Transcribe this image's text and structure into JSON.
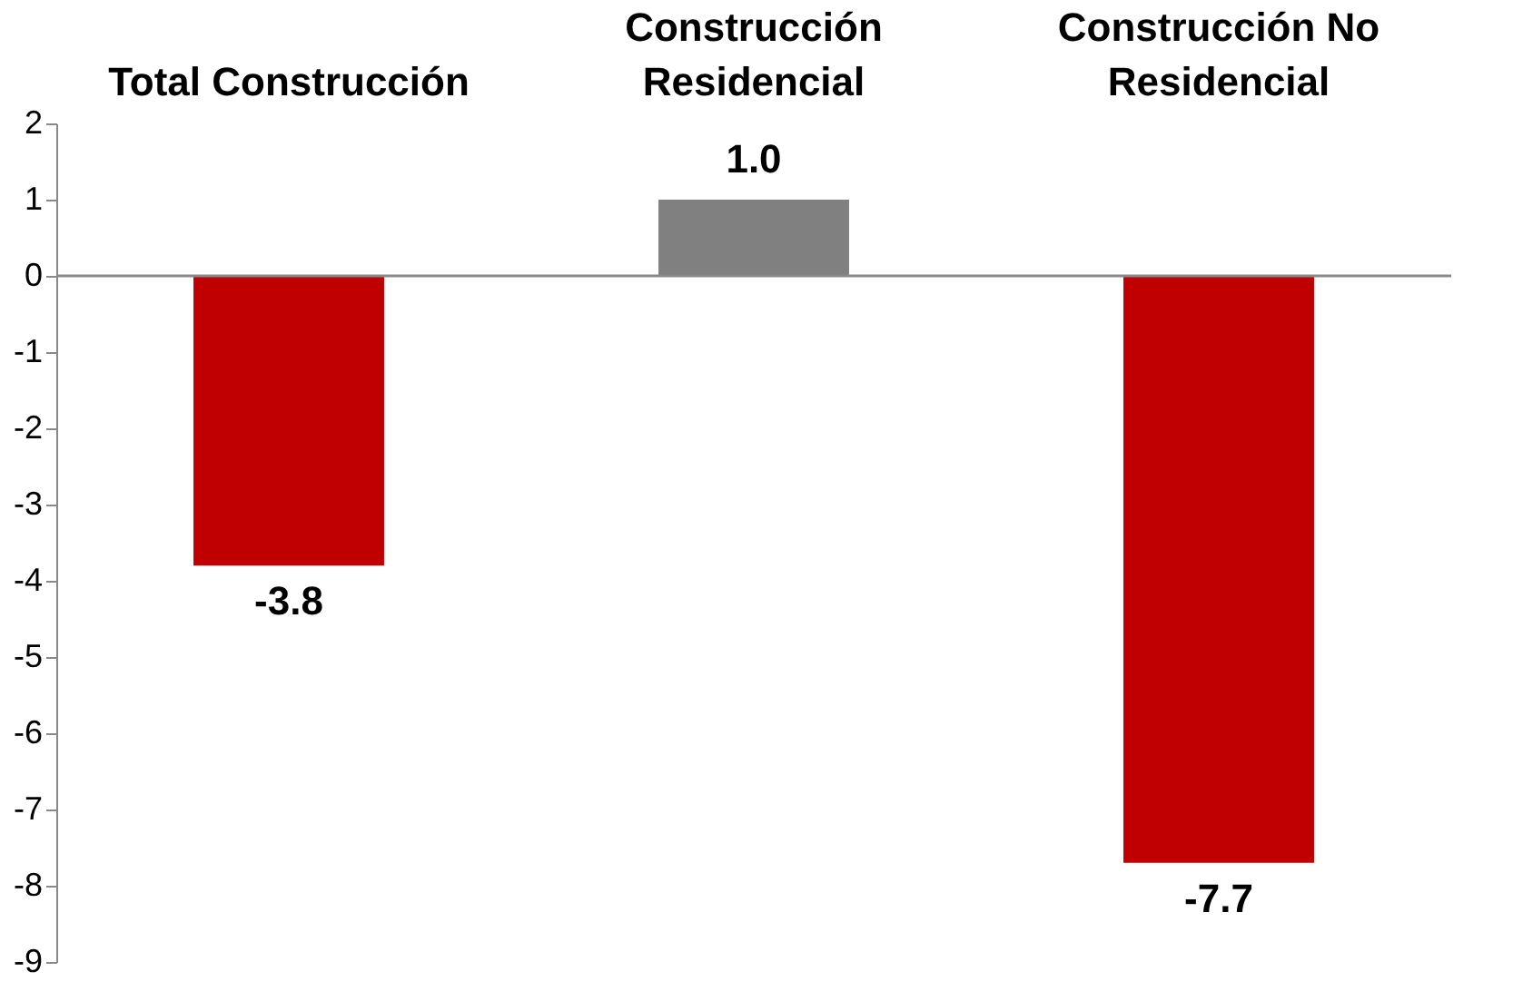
{
  "chart_data": {
    "type": "bar",
    "categories": [
      "Total Construcción",
      "Construcción Residencial",
      "Construcción No Residencial"
    ],
    "values": [
      -3.8,
      1.0,
      -7.7
    ],
    "colors": [
      "#c00000",
      "#808080",
      "#c00000"
    ],
    "value_labels": [
      "-3.8",
      "1.0",
      "-7.7"
    ],
    "ylim": [
      -9,
      2
    ],
    "yticks": [
      -9,
      -8,
      -7,
      -6,
      -5,
      -4,
      -3,
      -2,
      -1,
      0,
      1,
      2
    ],
    "ref_lines": [
      {
        "axis": "y",
        "value": 0,
        "color": "#888888"
      }
    ],
    "grid": false
  }
}
